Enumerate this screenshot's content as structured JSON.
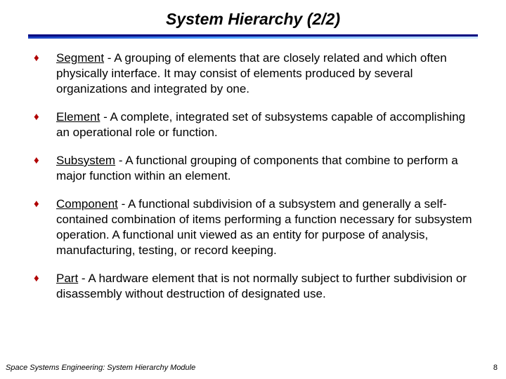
{
  "title": "System Hierarchy (2/2)",
  "accent_color": "#b00000",
  "rule_dark": "#000080",
  "items": [
    {
      "term": "Segment",
      "def": " - A grouping of elements that are closely related and which often physically interface. It may consist of elements produced by several organizations and integrated by one."
    },
    {
      "term": "Element",
      "def": " - A complete, integrated set of subsystems capable of accomplishing an operational role or function."
    },
    {
      "term": "Subsystem",
      "def": " - A functional grouping of components that combine to perform a major function within an element."
    },
    {
      "term": "Component",
      "def": " - A functional subdivision of a subsystem and generally a self-contained combination of items performing a function necessary for subsystem operation. A functional unit viewed as an entity for purpose of analysis, manufacturing, testing, or record keeping."
    },
    {
      "term": "Part",
      "def": " - A hardware element that is not normally subject to further subdivision or disassembly without destruction of designated use."
    }
  ],
  "footer": "Space Systems Engineering: System Hierarchy Module",
  "page_number": "8",
  "bullet_glyph": "♦"
}
